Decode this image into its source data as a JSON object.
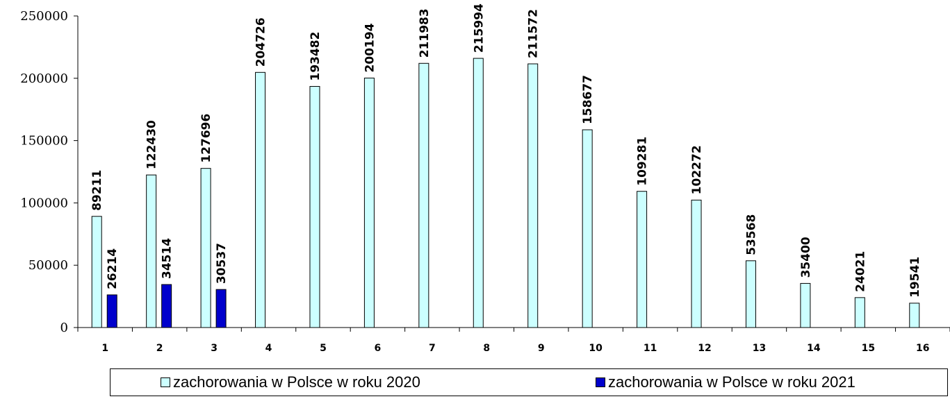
{
  "chart_data": {
    "type": "bar",
    "categories": [
      "1",
      "2",
      "3",
      "4",
      "5",
      "6",
      "7",
      "8",
      "9",
      "10",
      "11",
      "12",
      "13",
      "14",
      "15",
      "16"
    ],
    "series": [
      {
        "name": "zachorowania w Polsce w roku 2020",
        "color": "#ccffff",
        "values": [
          89211,
          122430,
          127696,
          204726,
          193482,
          200194,
          211983,
          215994,
          211572,
          158677,
          109281,
          102272,
          53568,
          35400,
          24021,
          19541
        ]
      },
      {
        "name": "zachorowania w Polsce w roku 2021",
        "color": "#0000cc",
        "values": [
          26214,
          34514,
          30537,
          null,
          null,
          null,
          null,
          null,
          null,
          null,
          null,
          null,
          null,
          null,
          null,
          null
        ]
      }
    ],
    "yticks": [
      "0",
      "50000",
      "100000",
      "150000",
      "200000",
      "250000"
    ],
    "ylim": [
      0,
      250000
    ],
    "xlabel": "",
    "ylabel": "",
    "grid": false,
    "legend_position": "bottom"
  }
}
